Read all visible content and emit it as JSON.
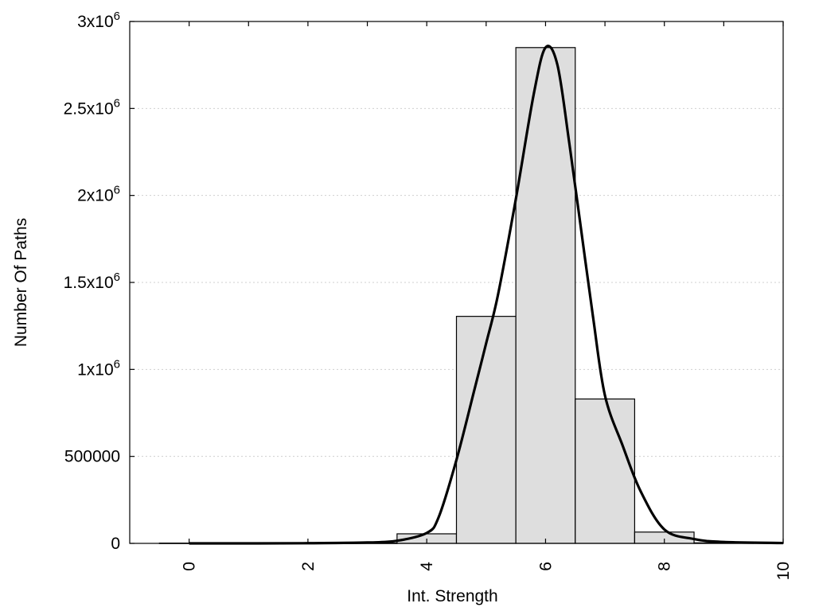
{
  "chart_data": {
    "type": "bar",
    "title": "",
    "xlabel": "Int. Strength",
    "ylabel": "Number Of Paths",
    "xlim": [
      -1,
      10
    ],
    "ylim": [
      0,
      3000000
    ],
    "x_ticks": [
      0,
      2,
      4,
      6,
      8,
      10
    ],
    "y_ticks": [
      {
        "value": 0,
        "label": "0"
      },
      {
        "value": 500000,
        "label": "500000"
      },
      {
        "value": 1000000,
        "label": "1x10^6"
      },
      {
        "value": 1500000,
        "label": "1.5x10^6"
      },
      {
        "value": 2000000,
        "label": "2x10^6"
      },
      {
        "value": 2500000,
        "label": "2.5x10^6"
      },
      {
        "value": 3000000,
        "label": "3x10^6"
      }
    ],
    "grid": true,
    "bins": [
      {
        "x": 0,
        "value": 1500
      },
      {
        "x": 1,
        "value": 1500
      },
      {
        "x": 2,
        "value": 1500
      },
      {
        "x": 3,
        "value": 1500
      },
      {
        "x": 4,
        "value": 55000
      },
      {
        "x": 5,
        "value": 1305000
      },
      {
        "x": 6,
        "value": 2850000
      },
      {
        "x": 7,
        "value": 830000
      },
      {
        "x": 8,
        "value": 65000
      },
      {
        "x": 9,
        "value": 3000
      }
    ],
    "bin_width": 1,
    "fit_curve": [
      [
        0,
        0
      ],
      [
        1,
        0
      ],
      [
        2,
        1000
      ],
      [
        3,
        5000
      ],
      [
        3.5,
        15000
      ],
      [
        4,
        60000
      ],
      [
        4.2,
        150000
      ],
      [
        4.5,
        480000
      ],
      [
        4.8,
        880000
      ],
      [
        5,
        1150000
      ],
      [
        5.2,
        1430000
      ],
      [
        5.5,
        1980000
      ],
      [
        5.8,
        2580000
      ],
      [
        6,
        2850000
      ],
      [
        6.2,
        2750000
      ],
      [
        6.4,
        2300000
      ],
      [
        6.6,
        1800000
      ],
      [
        6.8,
        1300000
      ],
      [
        7,
        850000
      ],
      [
        7.3,
        560000
      ],
      [
        7.6,
        300000
      ],
      [
        8,
        80000
      ],
      [
        8.5,
        25000
      ],
      [
        9,
        8000
      ],
      [
        10,
        2000
      ]
    ]
  }
}
